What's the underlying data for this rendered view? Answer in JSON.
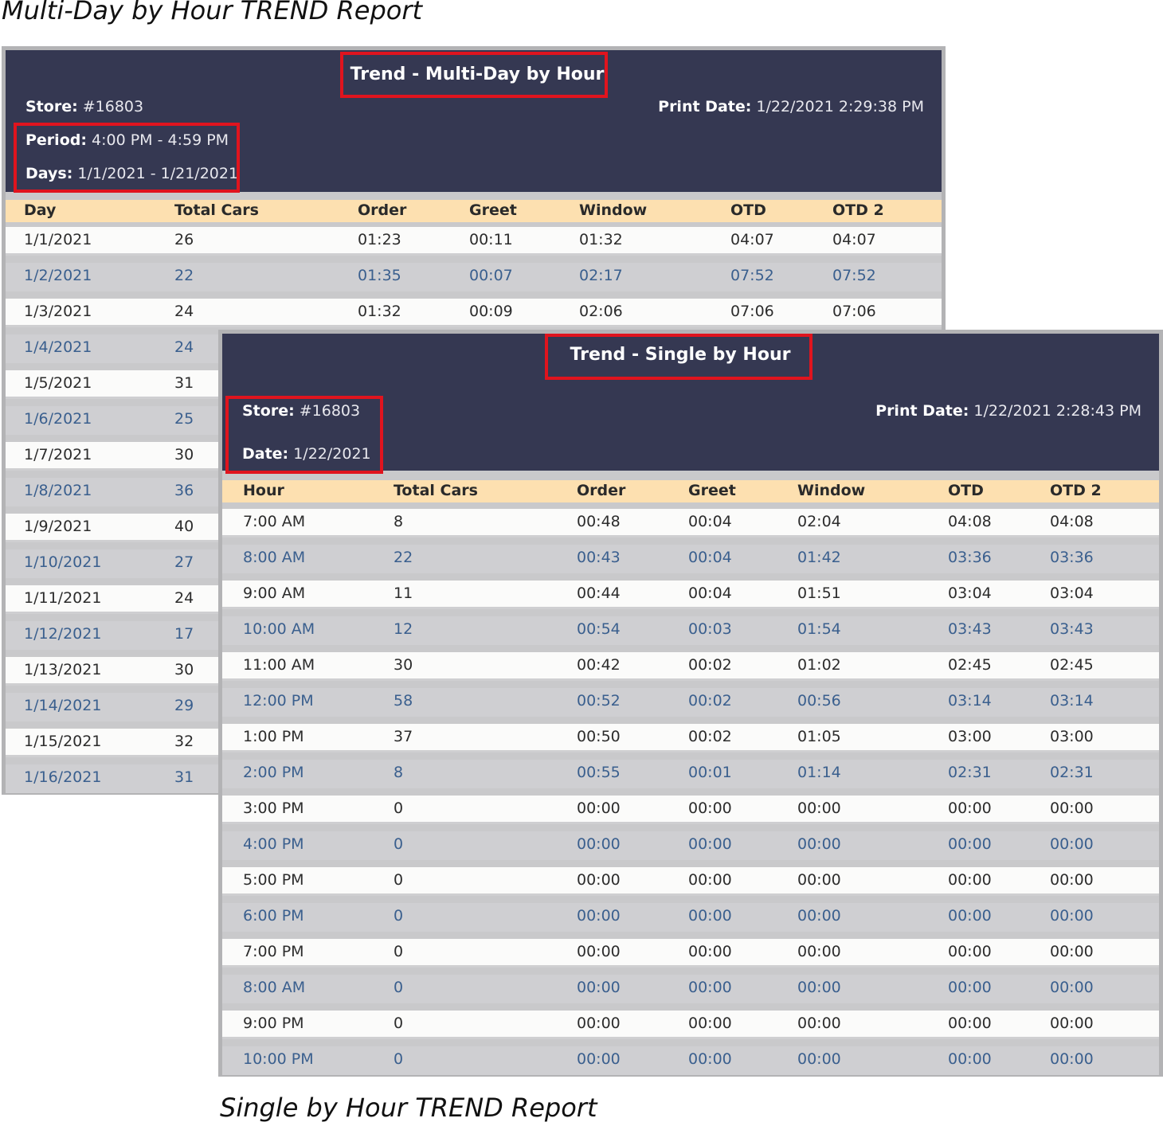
{
  "captions": {
    "top": "Multi-Day by Hour TREND Report",
    "bottom": "Single by Hour TREND Report"
  },
  "multi": {
    "title": "Trend - Multi-Day by Hour",
    "store_label": "Store:",
    "store_value": "#16803",
    "print_label": "Print Date:",
    "print_value": "1/22/2021 2:29:38 PM",
    "period_label": "Period:",
    "period_value": "4:00 PM - 4:59 PM",
    "days_label": "Days:",
    "days_value": "1/1/2021 - 1/21/2021",
    "columns": [
      "Day",
      "Total Cars",
      "Order",
      "Greet",
      "Window",
      "OTD",
      "OTD 2"
    ],
    "rows": [
      [
        "1/1/2021",
        "26",
        "01:23",
        "00:11",
        "01:32",
        "04:07",
        "04:07"
      ],
      [
        "1/2/2021",
        "22",
        "01:35",
        "00:07",
        "02:17",
        "07:52",
        "07:52"
      ],
      [
        "1/3/2021",
        "24",
        "01:32",
        "00:09",
        "02:06",
        "07:06",
        "07:06"
      ],
      [
        "1/4/2021",
        "24"
      ],
      [
        "1/5/2021",
        "31"
      ],
      [
        "1/6/2021",
        "25"
      ],
      [
        "1/7/2021",
        "30"
      ],
      [
        "1/8/2021",
        "36"
      ],
      [
        "1/9/2021",
        "40"
      ],
      [
        "1/10/2021",
        "27"
      ],
      [
        "1/11/2021",
        "24"
      ],
      [
        "1/12/2021",
        "17"
      ],
      [
        "1/13/2021",
        "30"
      ],
      [
        "1/14/2021",
        "29"
      ],
      [
        "1/15/2021",
        "32"
      ],
      [
        "1/16/2021",
        "31"
      ]
    ]
  },
  "single": {
    "title": "Trend - Single by Hour",
    "store_label": "Store:",
    "store_value": "#16803",
    "print_label": "Print Date:",
    "print_value": "1/22/2021 2:28:43 PM",
    "date_label": "Date:",
    "date_value": "1/22/2021",
    "columns": [
      "Hour",
      "Total Cars",
      "Order",
      "Greet",
      "Window",
      "OTD",
      "OTD 2"
    ],
    "rows": [
      [
        "7:00 AM",
        "8",
        "00:48",
        "00:04",
        "02:04",
        "04:08",
        "04:08"
      ],
      [
        "8:00 AM",
        "22",
        "00:43",
        "00:04",
        "01:42",
        "03:36",
        "03:36"
      ],
      [
        "9:00 AM",
        "11",
        "00:44",
        "00:04",
        "01:51",
        "03:04",
        "03:04"
      ],
      [
        "10:00 AM",
        "12",
        "00:54",
        "00:03",
        "01:54",
        "03:43",
        "03:43"
      ],
      [
        "11:00 AM",
        "30",
        "00:42",
        "00:02",
        "01:02",
        "02:45",
        "02:45"
      ],
      [
        "12:00 PM",
        "58",
        "00:52",
        "00:02",
        "00:56",
        "03:14",
        "03:14"
      ],
      [
        "1:00 PM",
        "37",
        "00:50",
        "00:02",
        "01:05",
        "03:00",
        "03:00"
      ],
      [
        "2:00 PM",
        "8",
        "00:55",
        "00:01",
        "01:14",
        "02:31",
        "02:31"
      ],
      [
        "3:00 PM",
        "0",
        "00:00",
        "00:00",
        "00:00",
        "00:00",
        "00:00"
      ],
      [
        "4:00 PM",
        "0",
        "00:00",
        "00:00",
        "00:00",
        "00:00",
        "00:00"
      ],
      [
        "5:00 PM",
        "0",
        "00:00",
        "00:00",
        "00:00",
        "00:00",
        "00:00"
      ],
      [
        "6:00 PM",
        "0",
        "00:00",
        "00:00",
        "00:00",
        "00:00",
        "00:00"
      ],
      [
        "7:00 PM",
        "0",
        "00:00",
        "00:00",
        "00:00",
        "00:00",
        "00:00"
      ],
      [
        "8:00 AM",
        "0",
        "00:00",
        "00:00",
        "00:00",
        "00:00",
        "00:00"
      ],
      [
        "9:00 PM",
        "0",
        "00:00",
        "00:00",
        "00:00",
        "00:00",
        "00:00"
      ],
      [
        "10:00 PM",
        "0",
        "00:00",
        "00:00",
        "00:00",
        "00:00",
        "00:00"
      ]
    ]
  },
  "colors": {
    "header_bg": "#353852",
    "column_header_bg": "#fde0b0",
    "highlight_box": "#e0141e",
    "alt_row_text": "#3a5f8e"
  }
}
